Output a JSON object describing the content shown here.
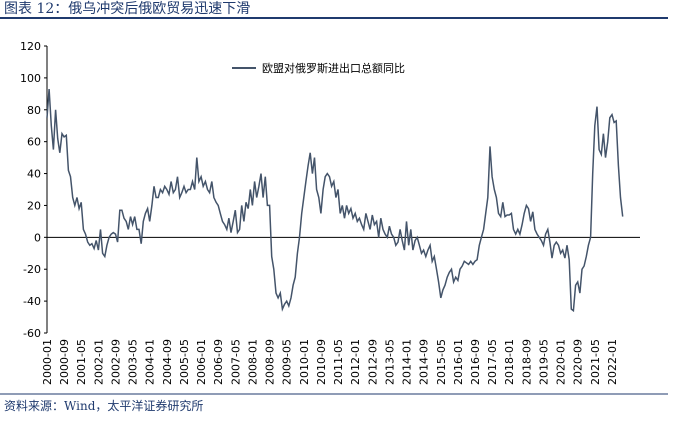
{
  "chart_data": {
    "type": "line",
    "title": "图表 12：俄乌冲突后俄欧贸易迅速下滑",
    "source": "资料来源：Wind，太平洋证券研究所",
    "categories": [
      "2000-01",
      null,
      null,
      null,
      null,
      null,
      null,
      null,
      "2000-09",
      null,
      null,
      null,
      null,
      null,
      null,
      null,
      "2001-05",
      null,
      null,
      null,
      null,
      null,
      null,
      null,
      "2002-01",
      null,
      null,
      null,
      null,
      null,
      null,
      null,
      "2002-09",
      null,
      null,
      null,
      null,
      null,
      null,
      null,
      "2003-05",
      null,
      null,
      null,
      null,
      null,
      null,
      null,
      "2004-01",
      null,
      null,
      null,
      null,
      null,
      null,
      null,
      "2004-09",
      null,
      null,
      null,
      null,
      null,
      null,
      null,
      "2005-05",
      null,
      null,
      null,
      null,
      null,
      null,
      null,
      "2006-01",
      null,
      null,
      null,
      null,
      null,
      null,
      null,
      "2006-09",
      null,
      null,
      null,
      null,
      null,
      null,
      null,
      "2007-05",
      null,
      null,
      null,
      null,
      null,
      null,
      null,
      "2008-01",
      null,
      null,
      null,
      null,
      null,
      null,
      null,
      "2008-09",
      null,
      null,
      null,
      null,
      null,
      null,
      null,
      "2009-05",
      null,
      null,
      null,
      null,
      null,
      null,
      null,
      "2010-01",
      null,
      null,
      null,
      null,
      null,
      null,
      null,
      "2010-09",
      null,
      null,
      null,
      null,
      null,
      null,
      null,
      "2011-05",
      null,
      null,
      null,
      null,
      null,
      null,
      null,
      "2012-01",
      null,
      null,
      null,
      null,
      null,
      null,
      null,
      "2012-09",
      null,
      null,
      null,
      null,
      null,
      null,
      null,
      "2013-05",
      null,
      null,
      null,
      null,
      null,
      null,
      null,
      "2014-01",
      null,
      null,
      null,
      null,
      null,
      null,
      null,
      "2014-09",
      null,
      null,
      null,
      null,
      null,
      null,
      null,
      "2015-05",
      null,
      null,
      null,
      null,
      null,
      null,
      null,
      "2016-01",
      null,
      null,
      null,
      null,
      null,
      null,
      null,
      "2016-09",
      null,
      null,
      null,
      null,
      null,
      null,
      null,
      "2017-05",
      null,
      null,
      null,
      null,
      null,
      null,
      null,
      "2018-01",
      null,
      null,
      null,
      null,
      null,
      null,
      null,
      "2018-09",
      null,
      null,
      null,
      null,
      null,
      null,
      null,
      "2019-05",
      null,
      null,
      null,
      null,
      null,
      null,
      null,
      "2020-01",
      null,
      null,
      null,
      null,
      null,
      null,
      null,
      "2020-09",
      null,
      null,
      null,
      null,
      null,
      null,
      null,
      "2021-05",
      null,
      null,
      null,
      null,
      null,
      null,
      null,
      "2022-01",
      null,
      null,
      null,
      null,
      null
    ],
    "series": [
      {
        "name": "欧盟对俄罗斯进出口总额同比",
        "color": "#44546a",
        "values": [
          75,
          93,
          70,
          55,
          80,
          62,
          53,
          65,
          63,
          64,
          42,
          38,
          25,
          20,
          25,
          18,
          22,
          5,
          2,
          -3,
          -5,
          -4,
          -7,
          -2,
          -8,
          5,
          -10,
          -12,
          -5,
          0,
          2,
          3,
          2,
          -3,
          17,
          17,
          12,
          10,
          5,
          13,
          8,
          13,
          5,
          5,
          -4,
          10,
          15,
          18,
          10,
          20,
          32,
          25,
          25,
          30,
          28,
          32,
          30,
          27,
          35,
          28,
          30,
          38,
          25,
          28,
          32,
          28,
          30,
          30,
          35,
          30,
          50,
          35,
          38,
          32,
          35,
          30,
          28,
          35,
          25,
          22,
          20,
          15,
          10,
          8,
          5,
          12,
          3,
          10,
          17,
          3,
          5,
          20,
          10,
          22,
          18,
          30,
          20,
          35,
          25,
          32,
          40,
          25,
          38,
          20,
          20,
          -12,
          -20,
          -35,
          -38,
          -35,
          -45,
          -42,
          -40,
          -43,
          -38,
          -30,
          -25,
          -10,
          0,
          15,
          25,
          35,
          45,
          53,
          40,
          50,
          30,
          25,
          15,
          30,
          38,
          40,
          38,
          32,
          35,
          25,
          30,
          15,
          20,
          12,
          20,
          15,
          18,
          12,
          15,
          10,
          12,
          8,
          5,
          15,
          10,
          5,
          14,
          8,
          10,
          0,
          12,
          5,
          2,
          0,
          7,
          2,
          0,
          -5,
          -3,
          5,
          -2,
          -8,
          10,
          -5,
          5,
          -8,
          -2,
          0,
          -5,
          -10,
          -8,
          -12,
          -8,
          -5,
          -15,
          -12,
          -20,
          -28,
          -38,
          -33,
          -30,
          -25,
          -22,
          -20,
          -28,
          -25,
          -27,
          -20,
          -18,
          -15,
          -16,
          -17,
          -15,
          -17,
          -15,
          -14,
          -5,
          0,
          5,
          15,
          25,
          57,
          38,
          30,
          25,
          15,
          13,
          22,
          13,
          14,
          14,
          15,
          5,
          2,
          5,
          2,
          8,
          15,
          20,
          18,
          10,
          16,
          5,
          2,
          0,
          -2,
          -5,
          2,
          5,
          -3,
          -13,
          -5,
          -3,
          -5,
          -10,
          -8,
          -13,
          -5,
          -14,
          -45,
          -46,
          -30,
          -28,
          -35,
          -20,
          -18,
          -12,
          -5,
          0,
          40,
          70,
          82,
          55,
          52,
          65,
          50,
          60,
          75,
          77,
          72,
          73,
          45,
          25,
          13
        ]
      }
    ],
    "ylim": [
      -60,
      120
    ],
    "yticks": [
      -60,
      -40,
      -20,
      0,
      20,
      40,
      60,
      80,
      100,
      120
    ],
    "legend": "top"
  }
}
